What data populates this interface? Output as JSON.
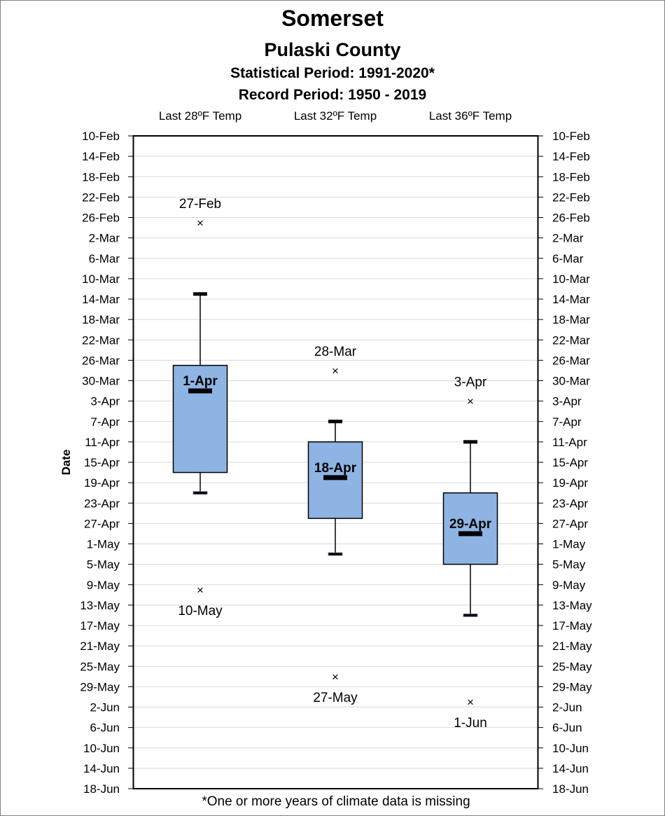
{
  "header": {
    "title": "Somerset",
    "subtitle": "Pulaski County",
    "statistical_period": "Statistical Period: 1991-2020*",
    "record_period": "Record Period: 1950 - 2019"
  },
  "footnote": "*One or more years of climate data is missing",
  "chart_data": {
    "type": "box",
    "ylabel": "Date",
    "y_axis_ticks": [
      "10-Feb",
      "14-Feb",
      "18-Feb",
      "22-Feb",
      "26-Feb",
      "2-Mar",
      "6-Mar",
      "10-Mar",
      "14-Mar",
      "18-Mar",
      "22-Mar",
      "26-Mar",
      "30-Mar",
      "3-Apr",
      "7-Apr",
      "11-Apr",
      "15-Apr",
      "19-Apr",
      "23-Apr",
      "27-Apr",
      "1-May",
      "5-May",
      "9-May",
      "13-May",
      "17-May",
      "21-May",
      "25-May",
      "29-May",
      "2-Jun",
      "6-Jun",
      "10-Jun",
      "14-Jun",
      "18-Jun"
    ],
    "ylim": [
      "10-Feb",
      "18-Jun"
    ],
    "y_inverted": true,
    "grid": true,
    "box_color": "#8eb4e3",
    "categories": [
      "Last 28ºF Temp",
      "Last 32ºF Temp",
      "Last 36ºF Temp"
    ],
    "series": [
      {
        "category": "Last 28ºF Temp",
        "whisker_low": "13-Mar",
        "q1": "27-Mar",
        "median": "1-Apr",
        "q3": "17-Apr",
        "whisker_high": "21-Apr",
        "earliest": "27-Feb",
        "latest": "10-May",
        "median_label": "1-Apr",
        "earliest_label": "27-Feb",
        "latest_label": "10-May"
      },
      {
        "category": "Last 32ºF Temp",
        "whisker_low": "7-Apr",
        "q1": "11-Apr",
        "median": "18-Apr",
        "q3": "26-Apr",
        "whisker_high": "3-May",
        "earliest": "28-Mar",
        "latest": "27-May",
        "median_label": "18-Apr",
        "earliest_label": "28-Mar",
        "latest_label": "27-May"
      },
      {
        "category": "Last 36ºF Temp",
        "whisker_low": "11-Apr",
        "q1": "21-Apr",
        "median": "29-Apr",
        "q3": "5-May",
        "whisker_high": "15-May",
        "earliest": "3-Apr",
        "latest": "1-Jun",
        "median_label": "29-Apr",
        "earliest_label": "3-Apr",
        "latest_label": "1-Jun"
      }
    ]
  }
}
